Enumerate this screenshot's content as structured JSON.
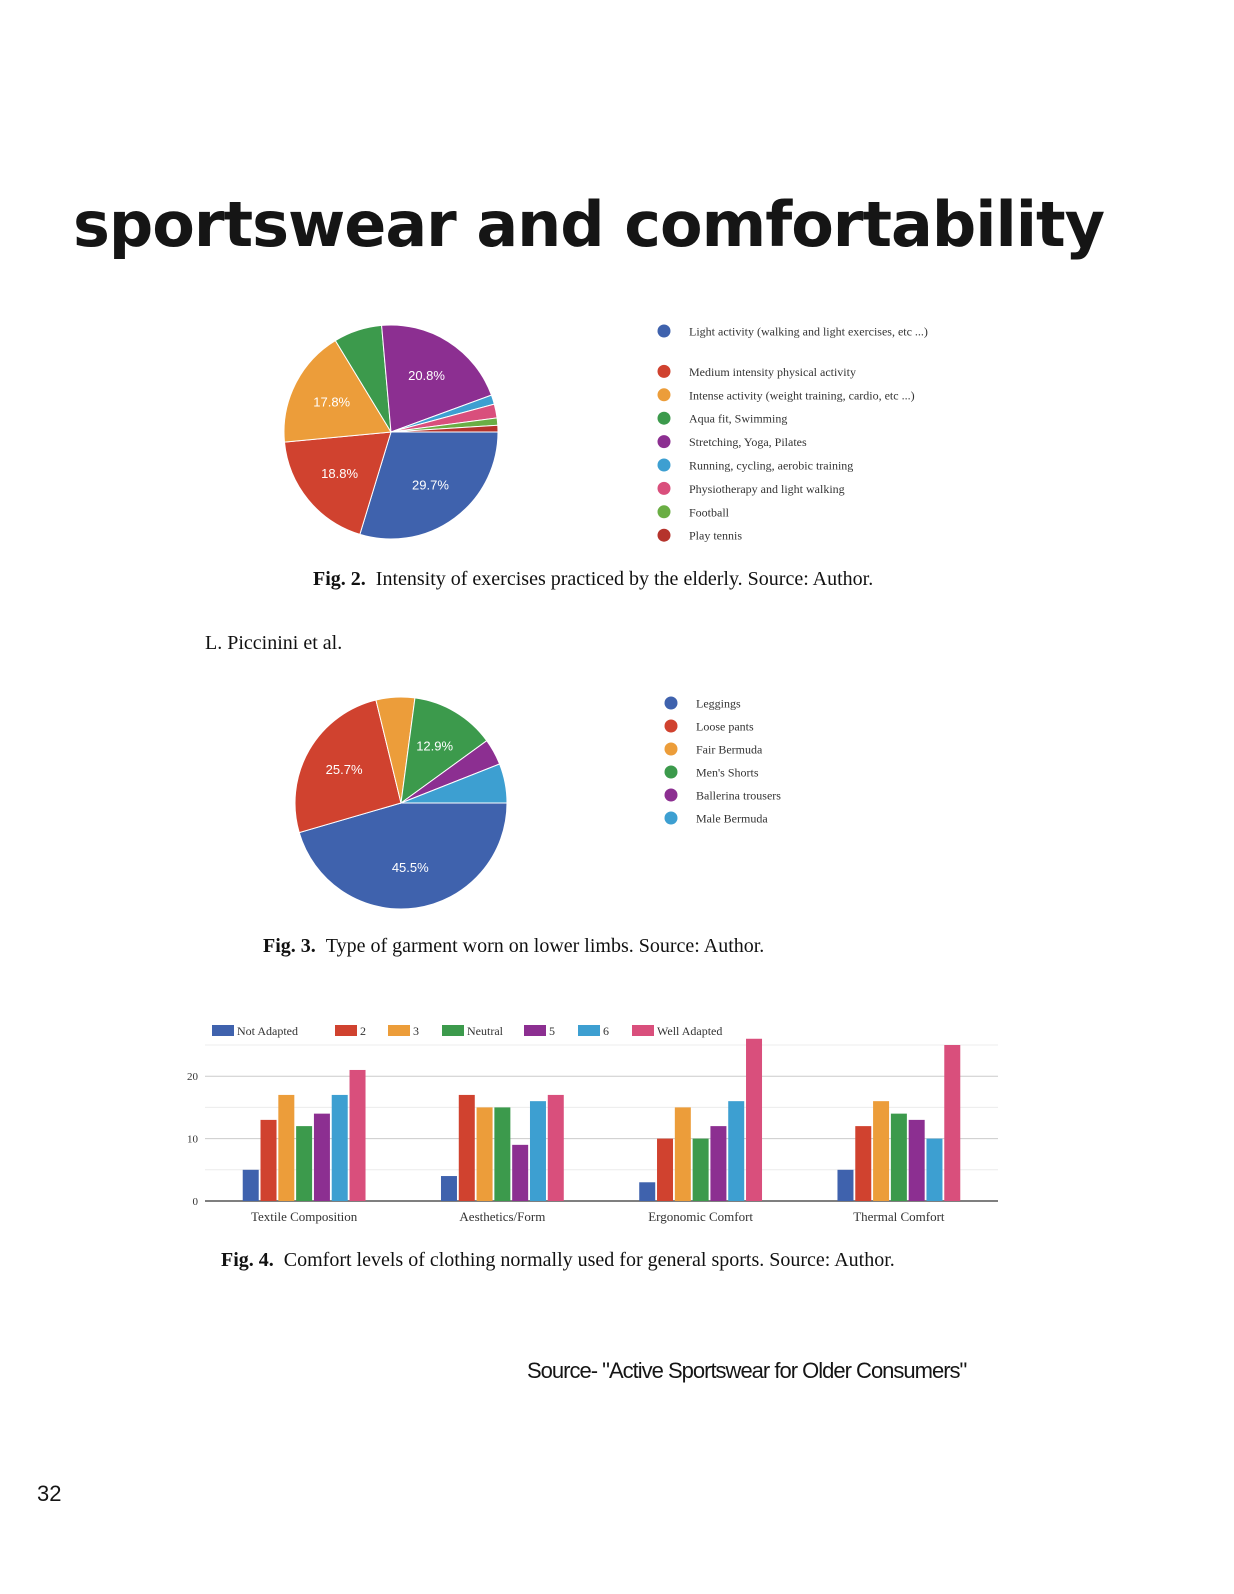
{
  "page": {
    "title": "sportswear and comfortability",
    "running_head": "L. Piccinini et al.",
    "source_note": "Source- \"Active Sportswear for Older Consumers\"",
    "page_number": "32"
  },
  "captions": {
    "fig2": {
      "label": "Fig. 2.",
      "text": "Intensity of exercises practiced by the elderly. Source: Author."
    },
    "fig3": {
      "label": "Fig. 3.",
      "text": "Type of garment worn on lower limbs. Source: Author."
    },
    "fig4": {
      "label": "Fig. 4.",
      "text": "Comfort levels of clothing normally used for general sports. Source: Author."
    }
  },
  "chart_data": [
    {
      "type": "pie",
      "title": "",
      "legend_position": "right",
      "slices": [
        {
          "label": "Light activity (walking and light exercises, etc ...)",
          "value": 29.7,
          "color": "#3f62ad",
          "shown_label": "29.7%"
        },
        {
          "label": "Medium intensity physical activity",
          "value": 18.8,
          "color": "#d0422f",
          "shown_label": "18.8%"
        },
        {
          "label": "Intense activity (weight training, cardio, etc ...)",
          "value": 17.8,
          "color": "#ec9d3a",
          "shown_label": "17.8%"
        },
        {
          "label": "Aqua fit, Swimming",
          "value": 7.3,
          "color": "#3c9a4c",
          "shown_label": ""
        },
        {
          "label": "Stretching, Yoga, Pilates",
          "value": 20.8,
          "color": "#8c2f91",
          "shown_label": "20.8%"
        },
        {
          "label": "Running, cycling, aerobic training",
          "value": 1.4,
          "color": "#3d9fd1",
          "shown_label": ""
        },
        {
          "label": "Physiotherapy and light walking",
          "value": 2.1,
          "color": "#d94f7c",
          "shown_label": ""
        },
        {
          "label": "Football",
          "value": 1.1,
          "color": "#6aae44",
          "shown_label": ""
        },
        {
          "label": "Play tennis",
          "value": 1.0,
          "color": "#b5332c",
          "shown_label": ""
        }
      ]
    },
    {
      "type": "pie",
      "title": "",
      "legend_position": "right",
      "slices": [
        {
          "label": "Leggings",
          "value": 45.5,
          "color": "#3f62ad",
          "shown_label": "45.5%"
        },
        {
          "label": "Loose pants",
          "value": 25.7,
          "color": "#d0422f",
          "shown_label": "25.7%"
        },
        {
          "label": "Fair Bermuda",
          "value": 5.9,
          "color": "#ec9d3a",
          "shown_label": ""
        },
        {
          "label": "Men's Shorts",
          "value": 12.9,
          "color": "#3c9a4c",
          "shown_label": "12.9%"
        },
        {
          "label": "Ballerina trousers",
          "value": 4.0,
          "color": "#8c2f91",
          "shown_label": ""
        },
        {
          "label": "Male Bermuda",
          "value": 6.0,
          "color": "#3d9fd1",
          "shown_label": ""
        }
      ]
    },
    {
      "type": "bar",
      "title": "",
      "xlabel": "",
      "ylabel": "",
      "legend_position": "top",
      "grid": true,
      "ylim": [
        0,
        25
      ],
      "yticks": [
        0,
        10,
        20
      ],
      "categories": [
        "Textile Composition",
        "Aesthetics/Form",
        "Ergonomic Comfort",
        "Thermal Comfort"
      ],
      "series": [
        {
          "name": "Not Adapted",
          "color": "#3f62ad",
          "values": [
            5,
            4,
            3,
            5
          ]
        },
        {
          "name": "2",
          "color": "#d0422f",
          "values": [
            13,
            17,
            10,
            12
          ]
        },
        {
          "name": "3",
          "color": "#ec9d3a",
          "values": [
            17,
            15,
            15,
            16
          ]
        },
        {
          "name": "Neutral",
          "color": "#3c9a4c",
          "values": [
            12,
            15,
            10,
            14
          ]
        },
        {
          "name": "5",
          "color": "#8c2f91",
          "values": [
            14,
            9,
            12,
            13
          ]
        },
        {
          "name": "6",
          "color": "#3d9fd1",
          "values": [
            17,
            16,
            16,
            10
          ]
        },
        {
          "name": "Well Adapted",
          "color": "#d94f7c",
          "values": [
            21,
            17,
            26,
            25
          ]
        }
      ]
    }
  ]
}
